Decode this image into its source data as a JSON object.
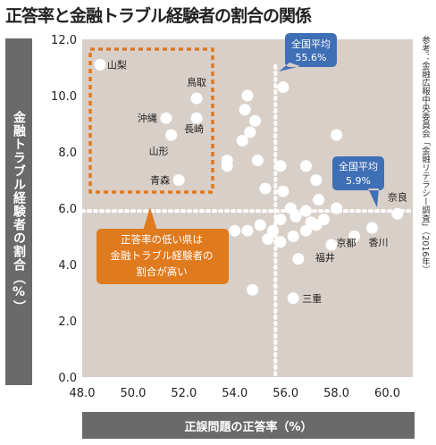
{
  "title": "正答率と金融トラブル経験者の割合の関係",
  "source": "参考：金融広報中央委員会「金融リテラシー調査」（2016年）",
  "colors": {
    "plot_bg": "#d8cfc8",
    "point": "#ffffff",
    "callout_blue": "#3f6fb5",
    "callout_orange": "#e07a1f",
    "axis_bar": "#6a6a6a"
  },
  "callouts": {
    "national_x": {
      "label": "全国平均",
      "value": "55.6%"
    },
    "national_y": {
      "label": "全国平均",
      "value": "5.9%"
    },
    "low_prefectures": [
      "正答率の低い県は",
      "金融トラブル経験者の",
      "割合が高い"
    ]
  },
  "chart_data": {
    "type": "scatter",
    "title": "正答率と金融トラブル経験者の割合の関係",
    "xlabel": "正誤問題の正答率（%）",
    "ylabel": "金融トラブル経験者の割合（%）",
    "xlim": [
      48.0,
      61.0
    ],
    "ylim": [
      0.0,
      12.0
    ],
    "x_ticks": [
      "48.0",
      "50.0",
      "52.0",
      "54.0",
      "56.0",
      "58.0",
      "60.0"
    ],
    "y_ticks": [
      "0.0",
      "2.0",
      "4.0",
      "6.0",
      "8.0",
      "10.0",
      "12.0"
    ],
    "grid": false,
    "reference_lines": {
      "x": 55.6,
      "y": 5.9
    },
    "points": [
      {
        "x": 48.7,
        "y": 11.1,
        "label": "山梨"
      },
      {
        "x": 52.5,
        "y": 9.9,
        "label": "鳥取"
      },
      {
        "x": 51.3,
        "y": 9.2,
        "label": "沖縄"
      },
      {
        "x": 52.5,
        "y": 9.2,
        "label": "長崎"
      },
      {
        "x": 51.5,
        "y": 8.6,
        "label": "山形"
      },
      {
        "x": 51.8,
        "y": 7.0,
        "label": "青森"
      },
      {
        "x": 60.4,
        "y": 5.8,
        "label": "奈良"
      },
      {
        "x": 59.4,
        "y": 5.3,
        "label": "香川"
      },
      {
        "x": 58.7,
        "y": 5.0,
        "label": "京都"
      },
      {
        "x": 57.8,
        "y": 4.7,
        "label": "福井"
      },
      {
        "x": 56.3,
        "y": 2.8,
        "label": "三重"
      },
      {
        "x": 55.9,
        "y": 10.3,
        "label": ""
      },
      {
        "x": 54.5,
        "y": 10.0,
        "label": ""
      },
      {
        "x": 54.4,
        "y": 9.5,
        "label": ""
      },
      {
        "x": 54.8,
        "y": 9.1,
        "label": ""
      },
      {
        "x": 54.6,
        "y": 8.7,
        "label": ""
      },
      {
        "x": 54.3,
        "y": 8.4,
        "label": ""
      },
      {
        "x": 58.0,
        "y": 8.6,
        "label": ""
      },
      {
        "x": 53.7,
        "y": 7.7,
        "label": ""
      },
      {
        "x": 53.7,
        "y": 7.5,
        "label": ""
      },
      {
        "x": 54.9,
        "y": 7.7,
        "label": ""
      },
      {
        "x": 55.8,
        "y": 7.5,
        "label": ""
      },
      {
        "x": 56.8,
        "y": 7.5,
        "label": ""
      },
      {
        "x": 57.2,
        "y": 7.0,
        "label": ""
      },
      {
        "x": 55.2,
        "y": 6.7,
        "label": ""
      },
      {
        "x": 55.9,
        "y": 6.6,
        "label": ""
      },
      {
        "x": 56.2,
        "y": 6.0,
        "label": ""
      },
      {
        "x": 57.3,
        "y": 6.3,
        "label": ""
      },
      {
        "x": 55.8,
        "y": 5.6,
        "label": ""
      },
      {
        "x": 56.4,
        "y": 5.7,
        "label": ""
      },
      {
        "x": 56.8,
        "y": 5.9,
        "label": ""
      },
      {
        "x": 57.0,
        "y": 5.5,
        "label": ""
      },
      {
        "x": 57.5,
        "y": 5.6,
        "label": ""
      },
      {
        "x": 58.0,
        "y": 6.0,
        "label": ""
      },
      {
        "x": 55.0,
        "y": 5.4,
        "label": ""
      },
      {
        "x": 55.5,
        "y": 5.2,
        "label": ""
      },
      {
        "x": 54.5,
        "y": 5.2,
        "label": ""
      },
      {
        "x": 54.0,
        "y": 5.2,
        "label": ""
      },
      {
        "x": 55.3,
        "y": 4.9,
        "label": ""
      },
      {
        "x": 55.8,
        "y": 4.8,
        "label": ""
      },
      {
        "x": 56.3,
        "y": 5.0,
        "label": ""
      },
      {
        "x": 56.8,
        "y": 5.2,
        "label": ""
      },
      {
        "x": 57.2,
        "y": 5.4,
        "label": ""
      },
      {
        "x": 56.5,
        "y": 4.2,
        "label": ""
      },
      {
        "x": 54.7,
        "y": 3.1,
        "label": ""
      }
    ]
  }
}
